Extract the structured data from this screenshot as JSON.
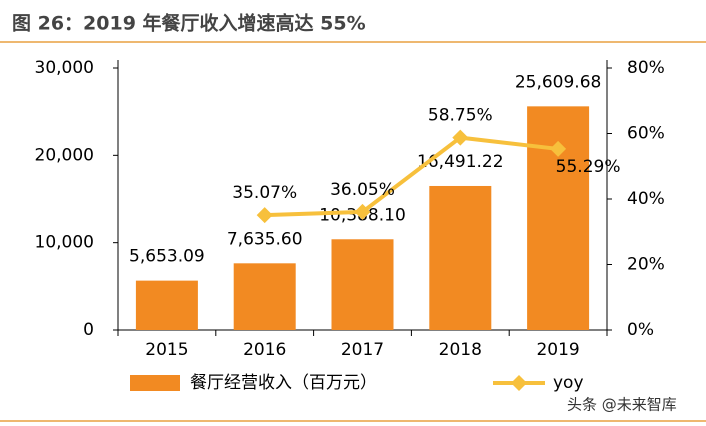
{
  "chart_data": {
    "type": "bar-line",
    "title": "图 26：2019 年餐厅收入增速高达 55%",
    "categories": [
      "2015",
      "2016",
      "2017",
      "2018",
      "2019"
    ],
    "series": [
      {
        "name": "餐厅经营收入（百万元）",
        "color": "#f28a22",
        "type": "bar",
        "values": [
          5653.09,
          7635.6,
          10388.1,
          16491.22,
          25609.68
        ],
        "value_labels": [
          "5,653.09",
          "7,635.60",
          "10,388.10",
          "16,491.22",
          "25,609.68"
        ]
      },
      {
        "name": "yoy",
        "color": "#f7c03c",
        "type": "line",
        "axis": "y2",
        "values": [
          null,
          35.07,
          36.05,
          58.75,
          55.29
        ],
        "value_labels": [
          null,
          "35.07%",
          "36.05%",
          "58.75%",
          "55.29%"
        ]
      }
    ],
    "ylim": [
      0,
      30000
    ],
    "yticks": [
      0,
      {
        "value": 10000,
        "label": "10,000"
      },
      {
        "value": 20000,
        "label": "20,000"
      },
      {
        "value": 30000,
        "label": "30,000"
      }
    ],
    "y2lim": [
      0,
      80
    ],
    "y2ticks": [
      {
        "value": 0,
        "label": "0%"
      },
      {
        "value": 20,
        "label": "20%"
      },
      {
        "value": 40,
        "label": "40%"
      },
      {
        "value": 60,
        "label": "60%"
      },
      {
        "value": 80,
        "label": "80%"
      }
    ]
  },
  "watermark": "头条 @未来智库"
}
